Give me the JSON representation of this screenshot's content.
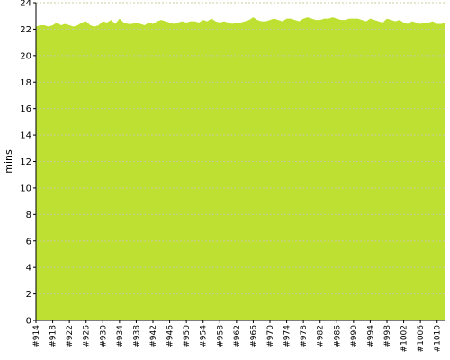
{
  "chart_data": {
    "type": "area",
    "ylabel": "mins",
    "ylim": [
      0,
      24
    ],
    "yticks": [
      0,
      2,
      4,
      6,
      8,
      10,
      12,
      14,
      16,
      18,
      20,
      22,
      24
    ],
    "grid": true,
    "fill_color": "#bde032",
    "grid_color": "#c8cc9b",
    "x_tick_labels": [
      "#914",
      "#918",
      "#922",
      "#926",
      "#930",
      "#934",
      "#938",
      "#942",
      "#946",
      "#950",
      "#954",
      "#958",
      "#962",
      "#966",
      "#970",
      "#974",
      "#978",
      "#982",
      "#986",
      "#990",
      "#994",
      "#998",
      "#1002",
      "#1006",
      "#1010"
    ],
    "x": [
      914,
      915,
      916,
      917,
      918,
      919,
      920,
      921,
      922,
      923,
      924,
      925,
      926,
      927,
      928,
      929,
      930,
      931,
      932,
      933,
      934,
      935,
      936,
      937,
      938,
      939,
      940,
      941,
      942,
      943,
      944,
      945,
      946,
      947,
      948,
      949,
      950,
      951,
      952,
      953,
      954,
      955,
      956,
      957,
      958,
      959,
      960,
      961,
      962,
      963,
      964,
      965,
      966,
      967,
      968,
      969,
      970,
      971,
      972,
      973,
      974,
      975,
      976,
      977,
      978,
      979,
      980,
      981,
      982,
      983,
      984,
      985,
      986,
      987,
      988,
      989,
      990,
      991,
      992,
      993,
      994,
      995,
      996,
      997,
      998,
      999,
      1000,
      1001,
      1002,
      1003,
      1004,
      1005,
      1006,
      1007,
      1008,
      1009,
      1010,
      1011,
      1012
    ],
    "values": [
      22.2,
      22.3,
      22.3,
      22.2,
      22.3,
      22.5,
      22.3,
      22.4,
      22.3,
      22.2,
      22.3,
      22.5,
      22.6,
      22.3,
      22.2,
      22.3,
      22.6,
      22.5,
      22.7,
      22.4,
      22.8,
      22.5,
      22.4,
      22.4,
      22.5,
      22.4,
      22.3,
      22.5,
      22.4,
      22.6,
      22.7,
      22.6,
      22.5,
      22.4,
      22.5,
      22.6,
      22.5,
      22.6,
      22.6,
      22.5,
      22.7,
      22.6,
      22.8,
      22.6,
      22.5,
      22.6,
      22.5,
      22.4,
      22.5,
      22.5,
      22.6,
      22.7,
      22.9,
      22.7,
      22.6,
      22.6,
      22.7,
      22.8,
      22.7,
      22.6,
      22.8,
      22.8,
      22.7,
      22.6,
      22.8,
      22.9,
      22.8,
      22.7,
      22.7,
      22.8,
      22.8,
      22.9,
      22.8,
      22.7,
      22.7,
      22.8,
      22.8,
      22.8,
      22.7,
      22.6,
      22.8,
      22.7,
      22.6,
      22.5,
      22.8,
      22.7,
      22.6,
      22.7,
      22.5,
      22.4,
      22.6,
      22.5,
      22.4,
      22.5,
      22.5,
      22.6,
      22.4,
      22.4,
      22.5
    ]
  }
}
